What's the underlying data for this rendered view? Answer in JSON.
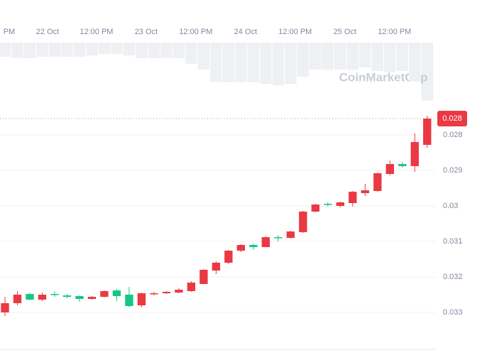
{
  "chart_data": {
    "type": "candlestick",
    "watermark": "CoinMarketCap",
    "up_color": "#16c784",
    "down_color": "#ea3943",
    "volume_color": "#eef0f3",
    "xlim": [
      -0.4,
      34.7
    ],
    "xticks": [
      {
        "value": 0.34,
        "label": "PM"
      },
      {
        "value": 3.43,
        "label": "22 Oct"
      },
      {
        "value": 7.37,
        "label": "12:00 PM"
      },
      {
        "value": 11.37,
        "label": "23 Oct"
      },
      {
        "value": 15.37,
        "label": "12:00 PM"
      },
      {
        "value": 19.37,
        "label": "24 Oct"
      },
      {
        "value": 23.37,
        "label": "12:00 PM"
      },
      {
        "value": 27.37,
        "label": "25 Oct"
      },
      {
        "value": 31.37,
        "label": "12:00 PM"
      }
    ],
    "ylim": [
      0.0272,
      0.03404
    ],
    "y_inverted": true,
    "yticks": [
      0.028,
      0.029,
      0.03,
      0.031,
      0.032,
      0.033
    ],
    "grid": true,
    "current_price": {
      "value": 0.02754,
      "label": "0.028"
    },
    "open": [
      0.033,
      0.03274,
      0.03248,
      0.03264,
      0.03248,
      0.03252,
      0.03254,
      0.03262,
      0.03256,
      0.03238,
      0.0325,
      0.0328,
      0.03248,
      0.03246,
      0.03244,
      0.0324,
      0.0322,
      0.03182,
      0.0316,
      0.03126,
      0.0311,
      0.03116,
      0.03088,
      0.0309,
      0.03074,
      0.03016,
      0.02994,
      0.03,
      0.02992,
      0.02964,
      0.02958,
      0.0291,
      0.02882,
      0.02888,
      0.02828
    ],
    "high": [
      0.0331,
      0.0328,
      0.03266,
      0.03268,
      0.03256,
      0.0326,
      0.0327,
      0.03264,
      0.03258,
      0.03268,
      0.03286,
      0.03286,
      0.03252,
      0.03248,
      0.03246,
      0.03242,
      0.0322,
      0.03192,
      0.03164,
      0.0313,
      0.03124,
      0.03116,
      0.031,
      0.03092,
      0.03076,
      0.03018,
      0.03002,
      0.03004,
      0.03002,
      0.02972,
      0.0296,
      0.02914,
      0.02892,
      0.02904,
      0.02836
    ],
    "low": [
      0.03256,
      0.0324,
      0.03244,
      0.03244,
      0.0324,
      0.03248,
      0.03252,
      0.03254,
      0.03238,
      0.03234,
      0.03228,
      0.03244,
      0.03242,
      0.0324,
      0.03232,
      0.03212,
      0.03178,
      0.03156,
      0.03124,
      0.03108,
      0.03106,
      0.03086,
      0.03082,
      0.0307,
      0.03014,
      0.02994,
      0.0299,
      0.02988,
      0.02958,
      0.02938,
      0.02906,
      0.02872,
      0.02876,
      0.02796,
      0.02746
    ],
    "close": [
      0.03274,
      0.0325,
      0.03264,
      0.0325,
      0.0325,
      0.03256,
      0.03262,
      0.03256,
      0.0324,
      0.03254,
      0.03282,
      0.03246,
      0.03246,
      0.03242,
      0.03236,
      0.03216,
      0.0318,
      0.0316,
      0.03126,
      0.0311,
      0.03116,
      0.03088,
      0.0309,
      0.03072,
      0.03016,
      0.02996,
      0.02996,
      0.0299,
      0.0296,
      0.02956,
      0.02908,
      0.02882,
      0.02888,
      0.0282,
      0.02754
    ],
    "volume_lim": [
      0,
      85
    ],
    "volume": [
      20,
      22,
      22,
      20,
      20,
      20,
      20,
      18,
      16,
      16,
      18,
      22,
      22,
      22,
      22,
      30,
      38,
      55,
      56,
      56,
      56,
      58,
      60,
      58,
      48,
      38,
      38,
      38,
      38,
      35,
      40,
      42,
      40,
      55,
      82
    ]
  }
}
